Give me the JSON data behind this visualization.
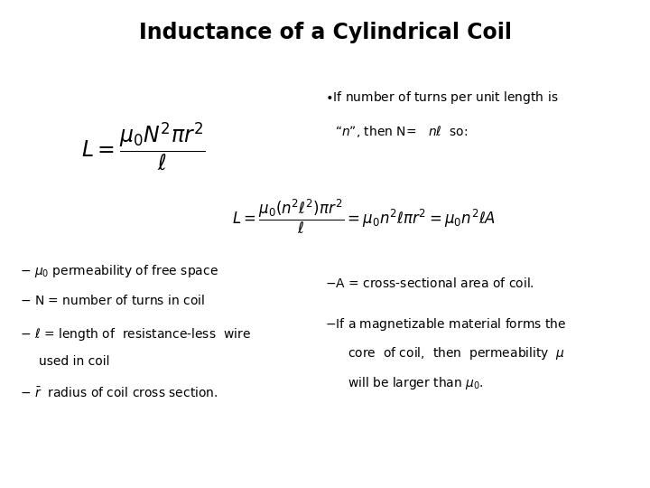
{
  "title": "Inductance of a Cylindrical Coil",
  "title_fontsize": 17,
  "title_fontweight": "bold",
  "bg_color": "#ffffff",
  "text_color": "#000000",
  "fig_width": 7.2,
  "fig_height": 5.4,
  "dpi": 100
}
